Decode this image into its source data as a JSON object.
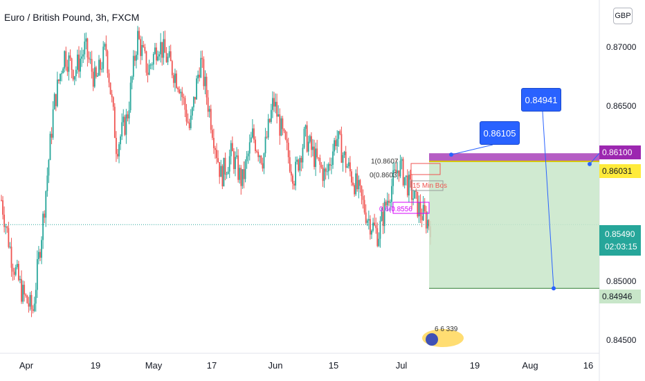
{
  "header": {
    "title": "Euro / British Pound, 3h, FXCM",
    "currency": "GBP"
  },
  "colors": {
    "up": "#26a69a",
    "down": "#ef5350",
    "target_zone": "#c8e6c9",
    "purple_zone": "#9c27b0",
    "yellow_tag": "#ffeb3b",
    "callout": "#2962ff"
  },
  "callouts": {
    "upper": "0.84941",
    "lower": "0.86105"
  },
  "price_tags": {
    "purple": "0.86100",
    "yellow": "0.86031",
    "last_price": "0.85490",
    "countdown": "02:03:15",
    "target": "0.84946"
  },
  "annotations": {
    "label_15min": "15 Min Bos",
    "fib_top": "1(0.8607",
    "fib_mid": "0(0.8603",
    "fib_lower": "0.6(0.8556",
    "logo_text": "6 6 339"
  },
  "chart_data": {
    "type": "candlestick",
    "title": "Euro / British Pound, 3h, FXCM",
    "x_ticks": [
      "Apr",
      "19",
      "May",
      "17",
      "Jun",
      "15",
      "Jul",
      "19",
      "Aug",
      "16"
    ],
    "y_ticks": [
      "0.87000",
      "0.86500",
      "0.85000",
      "0.84500"
    ],
    "ylim": [
      0.8445,
      0.8735
    ],
    "last_price": 0.8549,
    "close_path": [
      0.857,
      0.852,
      0.849,
      0.8475,
      0.8555,
      0.865,
      0.8695,
      0.868,
      0.87,
      0.867,
      0.87,
      0.8615,
      0.864,
      0.871,
      0.868,
      0.8705,
      0.8688,
      0.867,
      0.863,
      0.869,
      0.864,
      0.859,
      0.861,
      0.8585,
      0.8625,
      0.8605,
      0.8655,
      0.862,
      0.859,
      0.8625,
      0.8605,
      0.859,
      0.8625,
      0.86,
      0.858,
      0.8555,
      0.854,
      0.8575,
      0.86,
      0.858,
      0.856,
      0.8549
    ],
    "trade_setup": {
      "entry": 0.86031,
      "stop_zone_top": 0.861,
      "target": 0.84946
    }
  }
}
